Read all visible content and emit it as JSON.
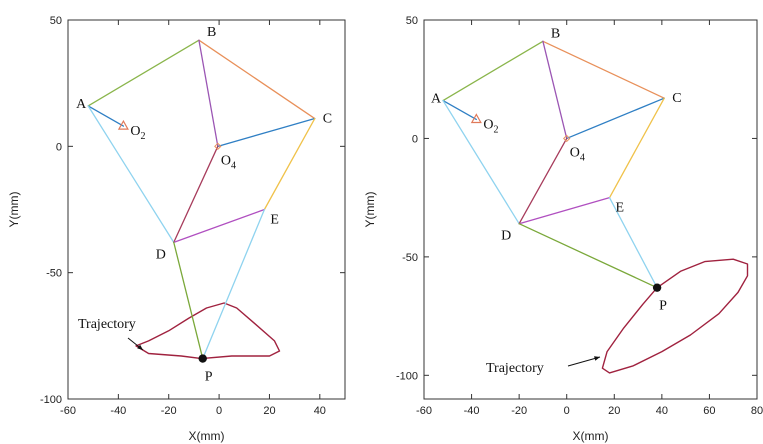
{
  "panels": [
    {
      "id": "left",
      "xlabel": "X(mm)",
      "ylabel": "Y(mm)",
      "xlim": [
        -60,
        50
      ],
      "ylim": [
        -100,
        50
      ],
      "xticks": [
        -60,
        -40,
        -20,
        0,
        20,
        40
      ],
      "yticks": [
        50,
        0,
        -50,
        -100
      ],
      "points": {
        "A": [
          -52,
          16
        ],
        "B": [
          -8,
          42
        ],
        "C": [
          38,
          11
        ],
        "O4": [
          -0.5,
          0
        ],
        "E": [
          18,
          -25
        ],
        "D": [
          -18,
          -38
        ],
        "P": [
          -6.5,
          -84
        ],
        "O2": [
          -38,
          8
        ]
      },
      "labels": [
        {
          "key": "A",
          "text": "A"
        },
        {
          "key": "B",
          "text": "B"
        },
        {
          "key": "C",
          "text": "C"
        },
        {
          "key": "O4",
          "text": "O",
          "sub": "4"
        },
        {
          "key": "E",
          "text": "E"
        },
        {
          "key": "D",
          "text": "D"
        },
        {
          "key": "P",
          "text": "P"
        },
        {
          "key": "O2",
          "text": "O",
          "sub": "2"
        }
      ],
      "links": [
        {
          "from": "A",
          "to": "B",
          "color": "#8ab54b"
        },
        {
          "from": "B",
          "to": "C",
          "color": "#e8905a"
        },
        {
          "from": "B",
          "to": "O4",
          "color": "#9b56b4"
        },
        {
          "from": "C",
          "to": "O4",
          "color": "#2f7fc4"
        },
        {
          "from": "A",
          "to": "O2",
          "color": "#2f7fc4"
        },
        {
          "from": "A",
          "to": "D",
          "color": "#8fd3ef"
        },
        {
          "from": "O4",
          "to": "D",
          "color": "#a73c5c"
        },
        {
          "from": "C",
          "to": "E",
          "color": "#f0c24a"
        },
        {
          "from": "D",
          "to": "E",
          "color": "#b04fc0"
        },
        {
          "from": "D",
          "to": "P",
          "color": "#7aa83a"
        },
        {
          "from": "E",
          "to": "P",
          "color": "#8fd3ef"
        }
      ],
      "trajectory": [
        [
          -7,
          -84
        ],
        [
          5,
          -83
        ],
        [
          20,
          -83
        ],
        [
          24,
          -81
        ],
        [
          22,
          -77
        ],
        [
          14,
          -70
        ],
        [
          7,
          -64
        ],
        [
          2,
          -62
        ],
        [
          -5,
          -64
        ],
        [
          -12,
          -68
        ],
        [
          -20,
          -73
        ],
        [
          -28,
          -77
        ],
        [
          -33,
          -79
        ],
        [
          -28,
          -82
        ],
        [
          -15,
          -83
        ],
        [
          -7,
          -84
        ]
      ],
      "annotation": {
        "text": "Trajectory"
      }
    },
    {
      "id": "right",
      "xlabel": "X(mm)",
      "ylabel": "Y(mm)",
      "xlim": [
        -60,
        80
      ],
      "ylim": [
        -110,
        50
      ],
      "xticks": [
        -60,
        -40,
        -20,
        0,
        20,
        40,
        60,
        80
      ],
      "yticks": [
        50,
        0,
        -50,
        -100
      ],
      "points": {
        "A": [
          -52,
          16
        ],
        "B": [
          -10,
          41
        ],
        "C": [
          41,
          17
        ],
        "O4": [
          0,
          0
        ],
        "E": [
          18,
          -25
        ],
        "D": [
          -20,
          -36
        ],
        "P": [
          38,
          -63
        ],
        "O2": [
          -38,
          8
        ]
      },
      "labels": [
        {
          "key": "A",
          "text": "A"
        },
        {
          "key": "B",
          "text": "B"
        },
        {
          "key": "C",
          "text": "C"
        },
        {
          "key": "O4",
          "text": "O",
          "sub": "4"
        },
        {
          "key": "E",
          "text": "E"
        },
        {
          "key": "D",
          "text": "D"
        },
        {
          "key": "P",
          "text": "P"
        },
        {
          "key": "O2",
          "text": "O",
          "sub": "2"
        }
      ],
      "links": [
        {
          "from": "A",
          "to": "B",
          "color": "#8ab54b"
        },
        {
          "from": "B",
          "to": "C",
          "color": "#e8905a"
        },
        {
          "from": "B",
          "to": "O4",
          "color": "#9b56b4"
        },
        {
          "from": "C",
          "to": "O4",
          "color": "#2f7fc4"
        },
        {
          "from": "A",
          "to": "O2",
          "color": "#2f7fc4"
        },
        {
          "from": "A",
          "to": "D",
          "color": "#8fd3ef"
        },
        {
          "from": "O4",
          "to": "D",
          "color": "#a73c5c"
        },
        {
          "from": "C",
          "to": "E",
          "color": "#f0c24a"
        },
        {
          "from": "D",
          "to": "E",
          "color": "#b04fc0"
        },
        {
          "from": "D",
          "to": "P",
          "color": "#7aa83a"
        },
        {
          "from": "E",
          "to": "P",
          "color": "#8fd3ef"
        }
      ],
      "trajectory": [
        [
          38,
          -63
        ],
        [
          48,
          -56
        ],
        [
          58,
          -52
        ],
        [
          70,
          -51
        ],
        [
          76,
          -53
        ],
        [
          76,
          -58
        ],
        [
          72,
          -65
        ],
        [
          64,
          -74
        ],
        [
          52,
          -83
        ],
        [
          40,
          -90
        ],
        [
          28,
          -96
        ],
        [
          18,
          -99
        ],
        [
          15,
          -97
        ],
        [
          17,
          -90
        ],
        [
          24,
          -80
        ],
        [
          32,
          -70
        ],
        [
          38,
          -63
        ]
      ],
      "annotation": {
        "text": "Trajectory"
      }
    }
  ],
  "colors": {
    "joint": "#111111",
    "o2_marker": "#e07a5a",
    "o4_marker": "#e8905a",
    "trajectory": "#a0223f"
  }
}
